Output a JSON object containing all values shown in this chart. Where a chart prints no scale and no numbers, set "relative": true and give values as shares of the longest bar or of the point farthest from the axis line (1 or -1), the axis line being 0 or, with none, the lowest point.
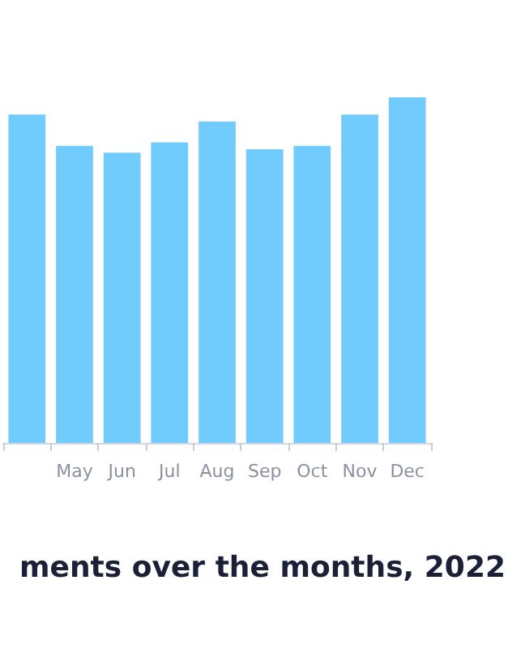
{
  "chart_data": {
    "type": "bar",
    "title": "ments over the months, 2022",
    "categories": [
      null,
      "May",
      "Jun",
      "Jul",
      "Aug",
      "Sep",
      "Oct",
      "Nov",
      "Dec"
    ],
    "values": [
      0.95,
      0.86,
      0.84,
      0.87,
      0.93,
      0.85,
      0.86,
      0.95,
      1
    ],
    "color": "#72cbfd",
    "relative": true,
    "grid": false
  }
}
